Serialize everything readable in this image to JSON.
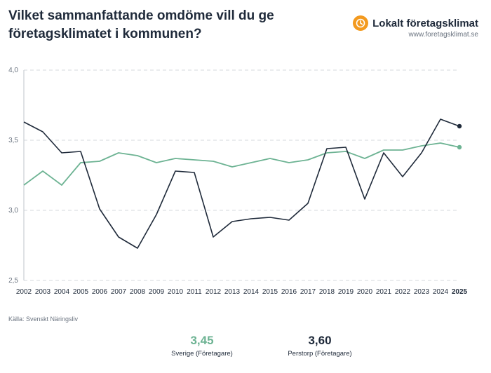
{
  "header": {
    "title": "Vilket sammanfattande omdöme vill du ge företagsklimatet i kommunen?",
    "brand_name": "Lokalt företagsklimat",
    "brand_url": "www.foretagsklimat.se"
  },
  "source": "Källa: Svenskt Näringsliv",
  "kpis": [
    {
      "value": "3,45",
      "label": "Sverige (Företagare)",
      "color": "#6db393"
    },
    {
      "value": "3,60",
      "label": "Perstorp (Företagare)",
      "color": "#1f2a3a"
    }
  ],
  "chart_data": {
    "type": "line",
    "title": "Vilket sammanfattande omdöme vill du ge företagsklimatet i kommunen?",
    "xlabel": "",
    "ylabel": "",
    "ylim": [
      2.5,
      4.0
    ],
    "yticks": [
      "2,5",
      "3,0",
      "3,5",
      "4,0"
    ],
    "ytick_values": [
      2.5,
      3.0,
      3.5,
      4.0
    ],
    "categories": [
      "2002",
      "2003",
      "2004",
      "2005",
      "2006",
      "2007",
      "2008",
      "2009",
      "2010",
      "2011",
      "2012",
      "2013",
      "2014",
      "2015",
      "2016",
      "2017",
      "2018",
      "2019",
      "2020",
      "2021",
      "2022",
      "2023",
      "2024",
      "2025"
    ],
    "highlight_category": "2025",
    "grid": true,
    "series": [
      {
        "name": "Sverige (Företagare)",
        "color": "#6db393",
        "values": [
          3.18,
          3.28,
          3.18,
          3.34,
          3.35,
          3.41,
          3.39,
          3.34,
          3.37,
          3.36,
          3.35,
          3.31,
          3.34,
          3.37,
          3.34,
          3.36,
          3.41,
          3.42,
          3.37,
          3.43,
          3.43,
          3.46,
          3.48,
          3.45
        ]
      },
      {
        "name": "Perstorp (Företagare)",
        "color": "#1f2a3a",
        "values": [
          3.63,
          3.56,
          3.41,
          3.42,
          3.01,
          2.81,
          2.73,
          2.97,
          3.28,
          3.27,
          2.81,
          2.92,
          2.94,
          2.95,
          2.93,
          3.05,
          3.44,
          3.45,
          3.08,
          3.41,
          3.24,
          3.41,
          3.65,
          3.6
        ]
      }
    ]
  }
}
